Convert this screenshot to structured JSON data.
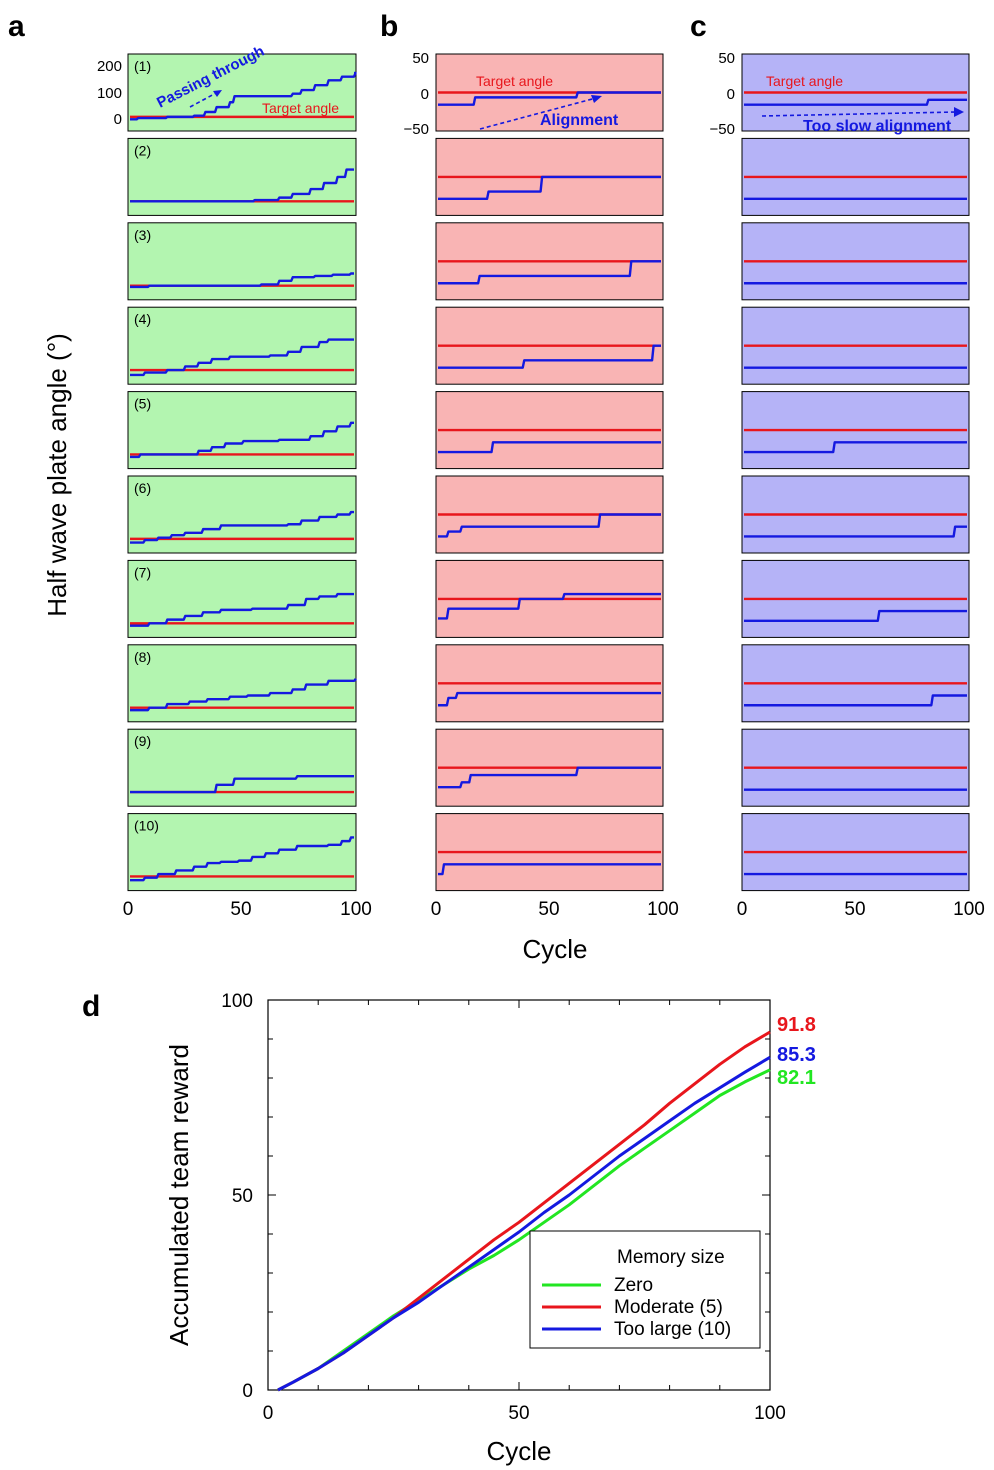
{
  "panel_labels": [
    "a",
    "b",
    "c",
    "d"
  ],
  "colors": {
    "green_bg": "#b3f5b0",
    "red_bg": "#f9b4b4",
    "blue_bg": "#b5b3f7",
    "target": "#e8161c",
    "angle": "#1419e0",
    "zero": "#22e622",
    "moderate": "#e8161c",
    "toolarge": "#1419e0"
  },
  "top": {
    "y_label": "Half wave plate angle (°)",
    "x_label": "Cycle",
    "x_ticks": [
      "0",
      "50",
      "100"
    ],
    "panel_a_y_ticks": [
      "200",
      "100",
      "0"
    ],
    "panel_bc_y_ticks": [
      "50",
      "0",
      "−50"
    ],
    "run_labels": [
      "(1)",
      "(2)",
      "(3)",
      "(4)",
      "(5)",
      "(6)",
      "(7)",
      "(8)",
      "(9)",
      "(10)"
    ],
    "annotations": {
      "target_angle": "Target angle",
      "passing_through": "Passing through",
      "alignment": "Alignment",
      "too_slow": "Too slow alignment"
    }
  },
  "chart_data": [
    {
      "type": "line",
      "panel": "a",
      "x_range": [
        0,
        100
      ],
      "ylim": [
        -20,
        220
      ],
      "target_angle": 0,
      "runs": [
        {
          "label": "(1)",
          "steps": [
            [
              0,
              -10
            ],
            [
              3,
              -5
            ],
            [
              16,
              0
            ],
            [
              28,
              5
            ],
            [
              33,
              20
            ],
            [
              38,
              40
            ],
            [
              44,
              60
            ],
            [
              46,
              85
            ],
            [
              62,
              85
            ],
            [
              72,
              95
            ],
            [
              76,
              110
            ],
            [
              82,
              130
            ],
            [
              88,
              150
            ],
            [
              94,
              165
            ],
            [
              100,
              180
            ]
          ]
        },
        {
          "label": "(2)",
          "steps": [
            [
              0,
              0
            ],
            [
              55,
              5
            ],
            [
              66,
              15
            ],
            [
              72,
              30
            ],
            [
              80,
              50
            ],
            [
              86,
              75
            ],
            [
              92,
              100
            ],
            [
              96,
              130
            ]
          ]
        },
        {
          "label": "(3)",
          "steps": [
            [
              0,
              -5
            ],
            [
              8,
              0
            ],
            [
              58,
              5
            ],
            [
              66,
              20
            ],
            [
              72,
              35
            ],
            [
              82,
              40
            ],
            [
              90,
              45
            ],
            [
              98,
              50
            ]
          ]
        },
        {
          "label": "(4)",
          "steps": [
            [
              0,
              -20
            ],
            [
              6,
              -10
            ],
            [
              16,
              0
            ],
            [
              24,
              15
            ],
            [
              30,
              30
            ],
            [
              36,
              45
            ],
            [
              44,
              55
            ],
            [
              62,
              60
            ],
            [
              70,
              75
            ],
            [
              76,
              95
            ],
            [
              84,
              115
            ],
            [
              88,
              125
            ]
          ]
        },
        {
          "label": "(5)",
          "steps": [
            [
              0,
              -10
            ],
            [
              4,
              0
            ],
            [
              30,
              15
            ],
            [
              36,
              30
            ],
            [
              42,
              45
            ],
            [
              50,
              55
            ],
            [
              66,
              60
            ],
            [
              80,
              75
            ],
            [
              86,
              95
            ],
            [
              92,
              115
            ],
            [
              98,
              130
            ]
          ]
        },
        {
          "label": "(6)",
          "steps": [
            [
              0,
              -15
            ],
            [
              6,
              -5
            ],
            [
              12,
              5
            ],
            [
              18,
              15
            ],
            [
              24,
              25
            ],
            [
              32,
              40
            ],
            [
              40,
              55
            ],
            [
              70,
              60
            ],
            [
              76,
              75
            ],
            [
              84,
              90
            ],
            [
              92,
              100
            ],
            [
              98,
              110
            ]
          ]
        },
        {
          "label": "(7)",
          "steps": [
            [
              0,
              -10
            ],
            [
              8,
              0
            ],
            [
              16,
              15
            ],
            [
              24,
              30
            ],
            [
              32,
              45
            ],
            [
              40,
              55
            ],
            [
              54,
              60
            ],
            [
              70,
              75
            ],
            [
              78,
              100
            ],
            [
              84,
              110
            ],
            [
              92,
              120
            ]
          ]
        },
        {
          "label": "(8)",
          "steps": [
            [
              0,
              -10
            ],
            [
              8,
              0
            ],
            [
              16,
              15
            ],
            [
              26,
              25
            ],
            [
              34,
              35
            ],
            [
              44,
              45
            ],
            [
              52,
              50
            ],
            [
              62,
              60
            ],
            [
              72,
              75
            ],
            [
              78,
              95
            ],
            [
              88,
              110
            ],
            [
              100,
              115
            ]
          ]
        },
        {
          "label": "(9)",
          "steps": [
            [
              0,
              0
            ],
            [
              38,
              30
            ],
            [
              46,
              55
            ],
            [
              74,
              65
            ]
          ]
        },
        {
          "label": "(10)",
          "steps": [
            [
              0,
              -15
            ],
            [
              6,
              -5
            ],
            [
              12,
              10
            ],
            [
              20,
              25
            ],
            [
              28,
              40
            ],
            [
              34,
              55
            ],
            [
              40,
              60
            ],
            [
              48,
              65
            ],
            [
              54,
              80
            ],
            [
              60,
              95
            ],
            [
              66,
              110
            ],
            [
              74,
              125
            ],
            [
              88,
              130
            ],
            [
              94,
              145
            ],
            [
              98,
              160
            ]
          ]
        }
      ]
    },
    {
      "type": "line",
      "panel": "b",
      "x_range": [
        0,
        100
      ],
      "ylim": [
        -60,
        60
      ],
      "target_angle": 0,
      "runs": [
        {
          "label": "(1)",
          "steps": [
            [
              0,
              -25
            ],
            [
              16,
              -10
            ],
            [
              62,
              0
            ]
          ]
        },
        {
          "label": "(2)",
          "steps": [
            [
              0,
              -45
            ],
            [
              22,
              -30
            ],
            [
              46,
              0
            ]
          ]
        },
        {
          "label": "(3)",
          "steps": [
            [
              0,
              -45
            ],
            [
              18,
              -30
            ],
            [
              86,
              0
            ]
          ]
        },
        {
          "label": "(4)",
          "steps": [
            [
              0,
              -45
            ],
            [
              38,
              -30
            ],
            [
              96,
              0
            ]
          ]
        },
        {
          "label": "(5)",
          "steps": [
            [
              0,
              -45
            ],
            [
              24,
              -25
            ]
          ]
        },
        {
          "label": "(6)",
          "steps": [
            [
              0,
              -45
            ],
            [
              4,
              -35
            ],
            [
              10,
              -25
            ],
            [
              72,
              0
            ]
          ]
        },
        {
          "label": "(7)",
          "steps": [
            [
              0,
              -40
            ],
            [
              4,
              -20
            ],
            [
              36,
              0
            ],
            [
              56,
              10
            ]
          ]
        },
        {
          "label": "(8)",
          "steps": [
            [
              0,
              -45
            ],
            [
              4,
              -30
            ],
            [
              8,
              -20
            ]
          ]
        },
        {
          "label": "(9)",
          "steps": [
            [
              0,
              -40
            ],
            [
              10,
              -30
            ],
            [
              14,
              -15
            ],
            [
              62,
              0
            ]
          ]
        },
        {
          "label": "(10)",
          "steps": [
            [
              0,
              -45
            ],
            [
              2,
              -25
            ]
          ]
        }
      ]
    },
    {
      "type": "line",
      "panel": "c",
      "x_range": [
        0,
        100
      ],
      "ylim": [
        -60,
        60
      ],
      "target_angle": 0,
      "runs": [
        {
          "label": "(1)",
          "steps": [
            [
              0,
              -25
            ],
            [
              82,
              -15
            ]
          ]
        },
        {
          "label": "(2)",
          "steps": [
            [
              0,
              -45
            ]
          ]
        },
        {
          "label": "(3)",
          "steps": [
            [
              0,
              -45
            ]
          ]
        },
        {
          "label": "(4)",
          "steps": [
            [
              0,
              -45
            ]
          ]
        },
        {
          "label": "(5)",
          "steps": [
            [
              0,
              -45
            ],
            [
              40,
              -25
            ]
          ]
        },
        {
          "label": "(6)",
          "steps": [
            [
              0,
              -45
            ],
            [
              94,
              -25
            ]
          ]
        },
        {
          "label": "(7)",
          "steps": [
            [
              0,
              -45
            ],
            [
              60,
              -25
            ]
          ]
        },
        {
          "label": "(8)",
          "steps": [
            [
              0,
              -45
            ],
            [
              84,
              -25
            ]
          ]
        },
        {
          "label": "(9)",
          "steps": [
            [
              0,
              -45
            ]
          ]
        },
        {
          "label": "(10)",
          "steps": [
            [
              0,
              -45
            ]
          ]
        }
      ]
    },
    {
      "type": "line",
      "panel": "d",
      "xlabel": "Cycle",
      "ylabel": "Accumulated team reward",
      "xlim": [
        0,
        100
      ],
      "ylim": [
        0,
        100
      ],
      "x_ticks": [
        "0",
        "50",
        "100"
      ],
      "y_ticks": [
        "0",
        "50",
        "100"
      ],
      "legend_title": "Memory size",
      "legend_placement": "bottom-right",
      "series": [
        {
          "name": "Zero",
          "color": "#22e622",
          "end_label": "82.1",
          "points": [
            [
              2,
              0
            ],
            [
              5,
              2
            ],
            [
              10,
              5.5
            ],
            [
              15,
              10
            ],
            [
              20,
              14.5
            ],
            [
              25,
              19
            ],
            [
              30,
              23
            ],
            [
              35,
              27
            ],
            [
              40,
              31
            ],
            [
              45,
              34.5
            ],
            [
              50,
              38.5
            ],
            [
              55,
              43
            ],
            [
              60,
              47.5
            ],
            [
              65,
              52.5
            ],
            [
              70,
              57.5
            ],
            [
              75,
              62
            ],
            [
              80,
              66.5
            ],
            [
              85,
              71
            ],
            [
              90,
              75.5
            ],
            [
              95,
              79
            ],
            [
              100,
              82.1
            ]
          ]
        },
        {
          "name": "Moderate (5)",
          "color": "#e8161c",
          "end_label": "91.8",
          "points": [
            [
              2,
              0
            ],
            [
              5,
              2
            ],
            [
              10,
              5.5
            ],
            [
              15,
              9.5
            ],
            [
              20,
              14
            ],
            [
              25,
              18.5
            ],
            [
              30,
              23.5
            ],
            [
              35,
              28.5
            ],
            [
              40,
              33.5
            ],
            [
              45,
              38.5
            ],
            [
              50,
              43
            ],
            [
              55,
              48
            ],
            [
              60,
              53
            ],
            [
              65,
              58
            ],
            [
              70,
              63
            ],
            [
              75,
              68
            ],
            [
              80,
              73.5
            ],
            [
              85,
              78.5
            ],
            [
              90,
              83.5
            ],
            [
              95,
              88
            ],
            [
              100,
              91.8
            ]
          ]
        },
        {
          "name": "Too large (10)",
          "color": "#1419e0",
          "end_label": "85.3",
          "points": [
            [
              2,
              0
            ],
            [
              5,
              2
            ],
            [
              10,
              5.5
            ],
            [
              15,
              9.5
            ],
            [
              20,
              14
            ],
            [
              25,
              18.5
            ],
            [
              30,
              22.5
            ],
            [
              35,
              27
            ],
            [
              40,
              31.5
            ],
            [
              45,
              36
            ],
            [
              50,
              40.5
            ],
            [
              55,
              45.5
            ],
            [
              60,
              50
            ],
            [
              65,
              55
            ],
            [
              70,
              60
            ],
            [
              75,
              64.5
            ],
            [
              80,
              69
            ],
            [
              85,
              73.5
            ],
            [
              90,
              77.5
            ],
            [
              95,
              81.5
            ],
            [
              100,
              85.3
            ]
          ]
        }
      ]
    }
  ]
}
